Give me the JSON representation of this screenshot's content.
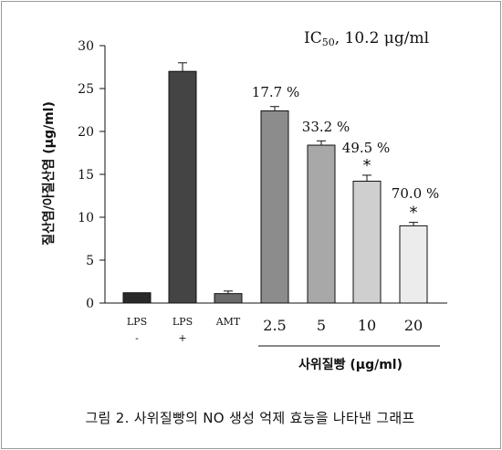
{
  "chart_data": {
    "type": "bar",
    "categories": [
      [
        "LPS",
        "-"
      ],
      [
        "LPS",
        "+"
      ],
      [
        "AMT",
        ""
      ],
      [
        "2.5",
        ""
      ],
      [
        "5",
        ""
      ],
      [
        "10",
        ""
      ],
      [
        "20",
        ""
      ]
    ],
    "values": [
      1.2,
      27.0,
      1.1,
      22.4,
      18.4,
      14.2,
      9.0
    ],
    "errors": [
      0.0,
      1.0,
      0.3,
      0.5,
      0.5,
      0.7,
      0.4
    ],
    "bar_colors": [
      "#2a2a2a",
      "#444444",
      "#6a6a6a",
      "#8c8c8c",
      "#a8a8a8",
      "#cfcfcf",
      "#ececec"
    ],
    "annotations": [
      "",
      "",
      "",
      "17.7 %",
      "33.2 %",
      "49.5 %",
      "70.0 %"
    ],
    "significance": [
      "",
      "",
      "",
      "",
      "",
      "*",
      "*"
    ],
    "ylabel": "질산염/아질산염 (μg/ml)",
    "ylim": [
      0,
      30
    ],
    "yticks": [
      0,
      5,
      10,
      15,
      20,
      25,
      30
    ],
    "ic50_label": "IC50, 10.2 μg/ml",
    "group_label": "사위질빵 (μg/ml)"
  },
  "caption": "그림 2. 사위질빵의 NO 생성 억제 효능을 나타낸 그래프"
}
